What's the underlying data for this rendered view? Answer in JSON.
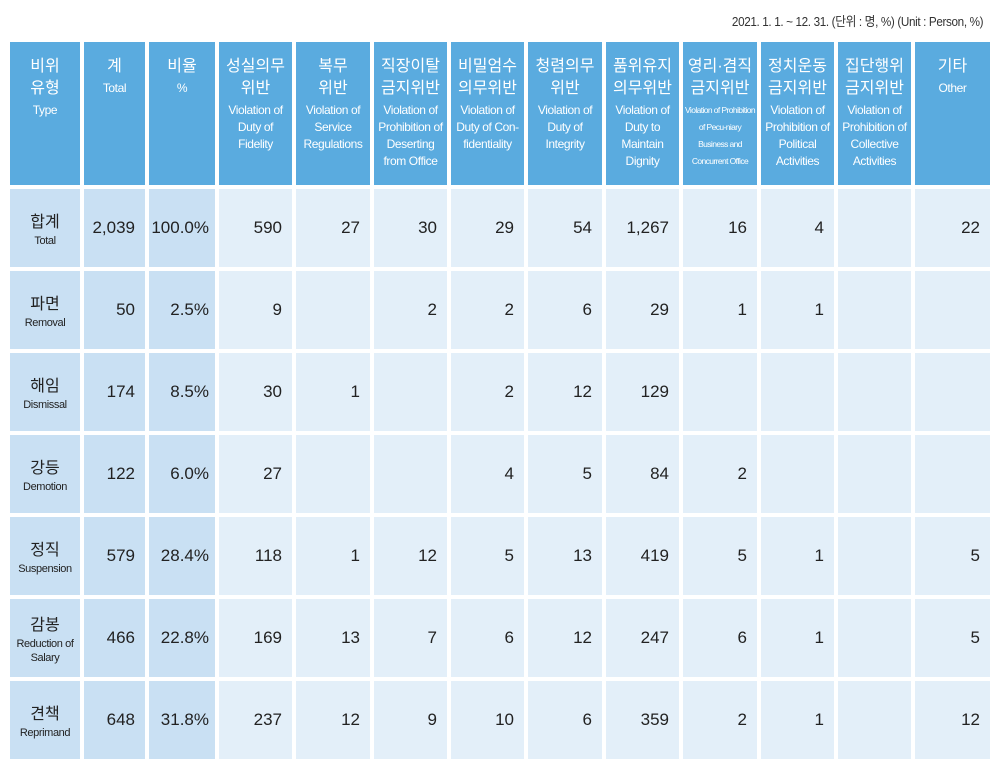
{
  "unit_note": "2021. 1. 1. ~ 12. 31. (단위 : 명, %) (Unit : Person, %)",
  "colors": {
    "header": "#5aabdf",
    "label_cells": "#c9e0f3",
    "data_cells": "#e3eff9"
  },
  "columns": [
    {
      "ko": "비위\n유형",
      "en": "Type"
    },
    {
      "ko": "계",
      "en": "Total"
    },
    {
      "ko": "비율",
      "en": "%"
    },
    {
      "ko": "성실의무\n위반",
      "en": "Violation of Duty of Fidelity"
    },
    {
      "ko": "복무\n위반",
      "en": "Violation of Service Regulations"
    },
    {
      "ko": "직장이탈\n금지위반",
      "en": "Violation of Prohibition of Deserting from Office"
    },
    {
      "ko": "비밀엄수\n의무위반",
      "en": "Violation of Duty of Con-fidentiality"
    },
    {
      "ko": "청렴의무\n위반",
      "en": "Violation of Duty of Integrity"
    },
    {
      "ko": "품위유지\n의무위반",
      "en": "Violation of Duty to Maintain Dignity"
    },
    {
      "ko": "영리·겸직\n금지위반",
      "en": "Violation of Prohibition of Pecu-niary Business and Concurrent Office"
    },
    {
      "ko": "정치운동\n금지위반",
      "en": "Violation of Prohibition of Political Activities"
    },
    {
      "ko": "집단행위\n금지위반",
      "en": "Violation of Prohibition of Collective Activities"
    },
    {
      "ko": "기타",
      "en": "Other"
    }
  ],
  "rows": [
    {
      "ko": "합계",
      "en": "Total",
      "values": [
        "2,039",
        "100.0%",
        "590",
        "27",
        "30",
        "29",
        "54",
        "1,267",
        "16",
        "4",
        "",
        "22"
      ]
    },
    {
      "ko": "파면",
      "en": "Removal",
      "values": [
        "50",
        "2.5%",
        "9",
        "",
        "2",
        "2",
        "6",
        "29",
        "1",
        "1",
        "",
        ""
      ]
    },
    {
      "ko": "해임",
      "en": "Dismissal",
      "values": [
        "174",
        "8.5%",
        "30",
        "1",
        "",
        "2",
        "12",
        "129",
        "",
        "",
        "",
        ""
      ]
    },
    {
      "ko": "강등",
      "en": "Demotion",
      "values": [
        "122",
        "6.0%",
        "27",
        "",
        "",
        "4",
        "5",
        "84",
        "2",
        "",
        "",
        ""
      ]
    },
    {
      "ko": "정직",
      "en": "Suspension",
      "values": [
        "579",
        "28.4%",
        "118",
        "1",
        "12",
        "5",
        "13",
        "419",
        "5",
        "1",
        "",
        "5"
      ]
    },
    {
      "ko": "감봉",
      "en": "Reduction of Salary",
      "values": [
        "466",
        "22.8%",
        "169",
        "13",
        "7",
        "6",
        "12",
        "247",
        "6",
        "1",
        "",
        "5"
      ]
    },
    {
      "ko": "견책",
      "en": "Reprimand",
      "values": [
        "648",
        "31.8%",
        "237",
        "12",
        "9",
        "10",
        "6",
        "359",
        "2",
        "1",
        "",
        "12"
      ]
    }
  ]
}
